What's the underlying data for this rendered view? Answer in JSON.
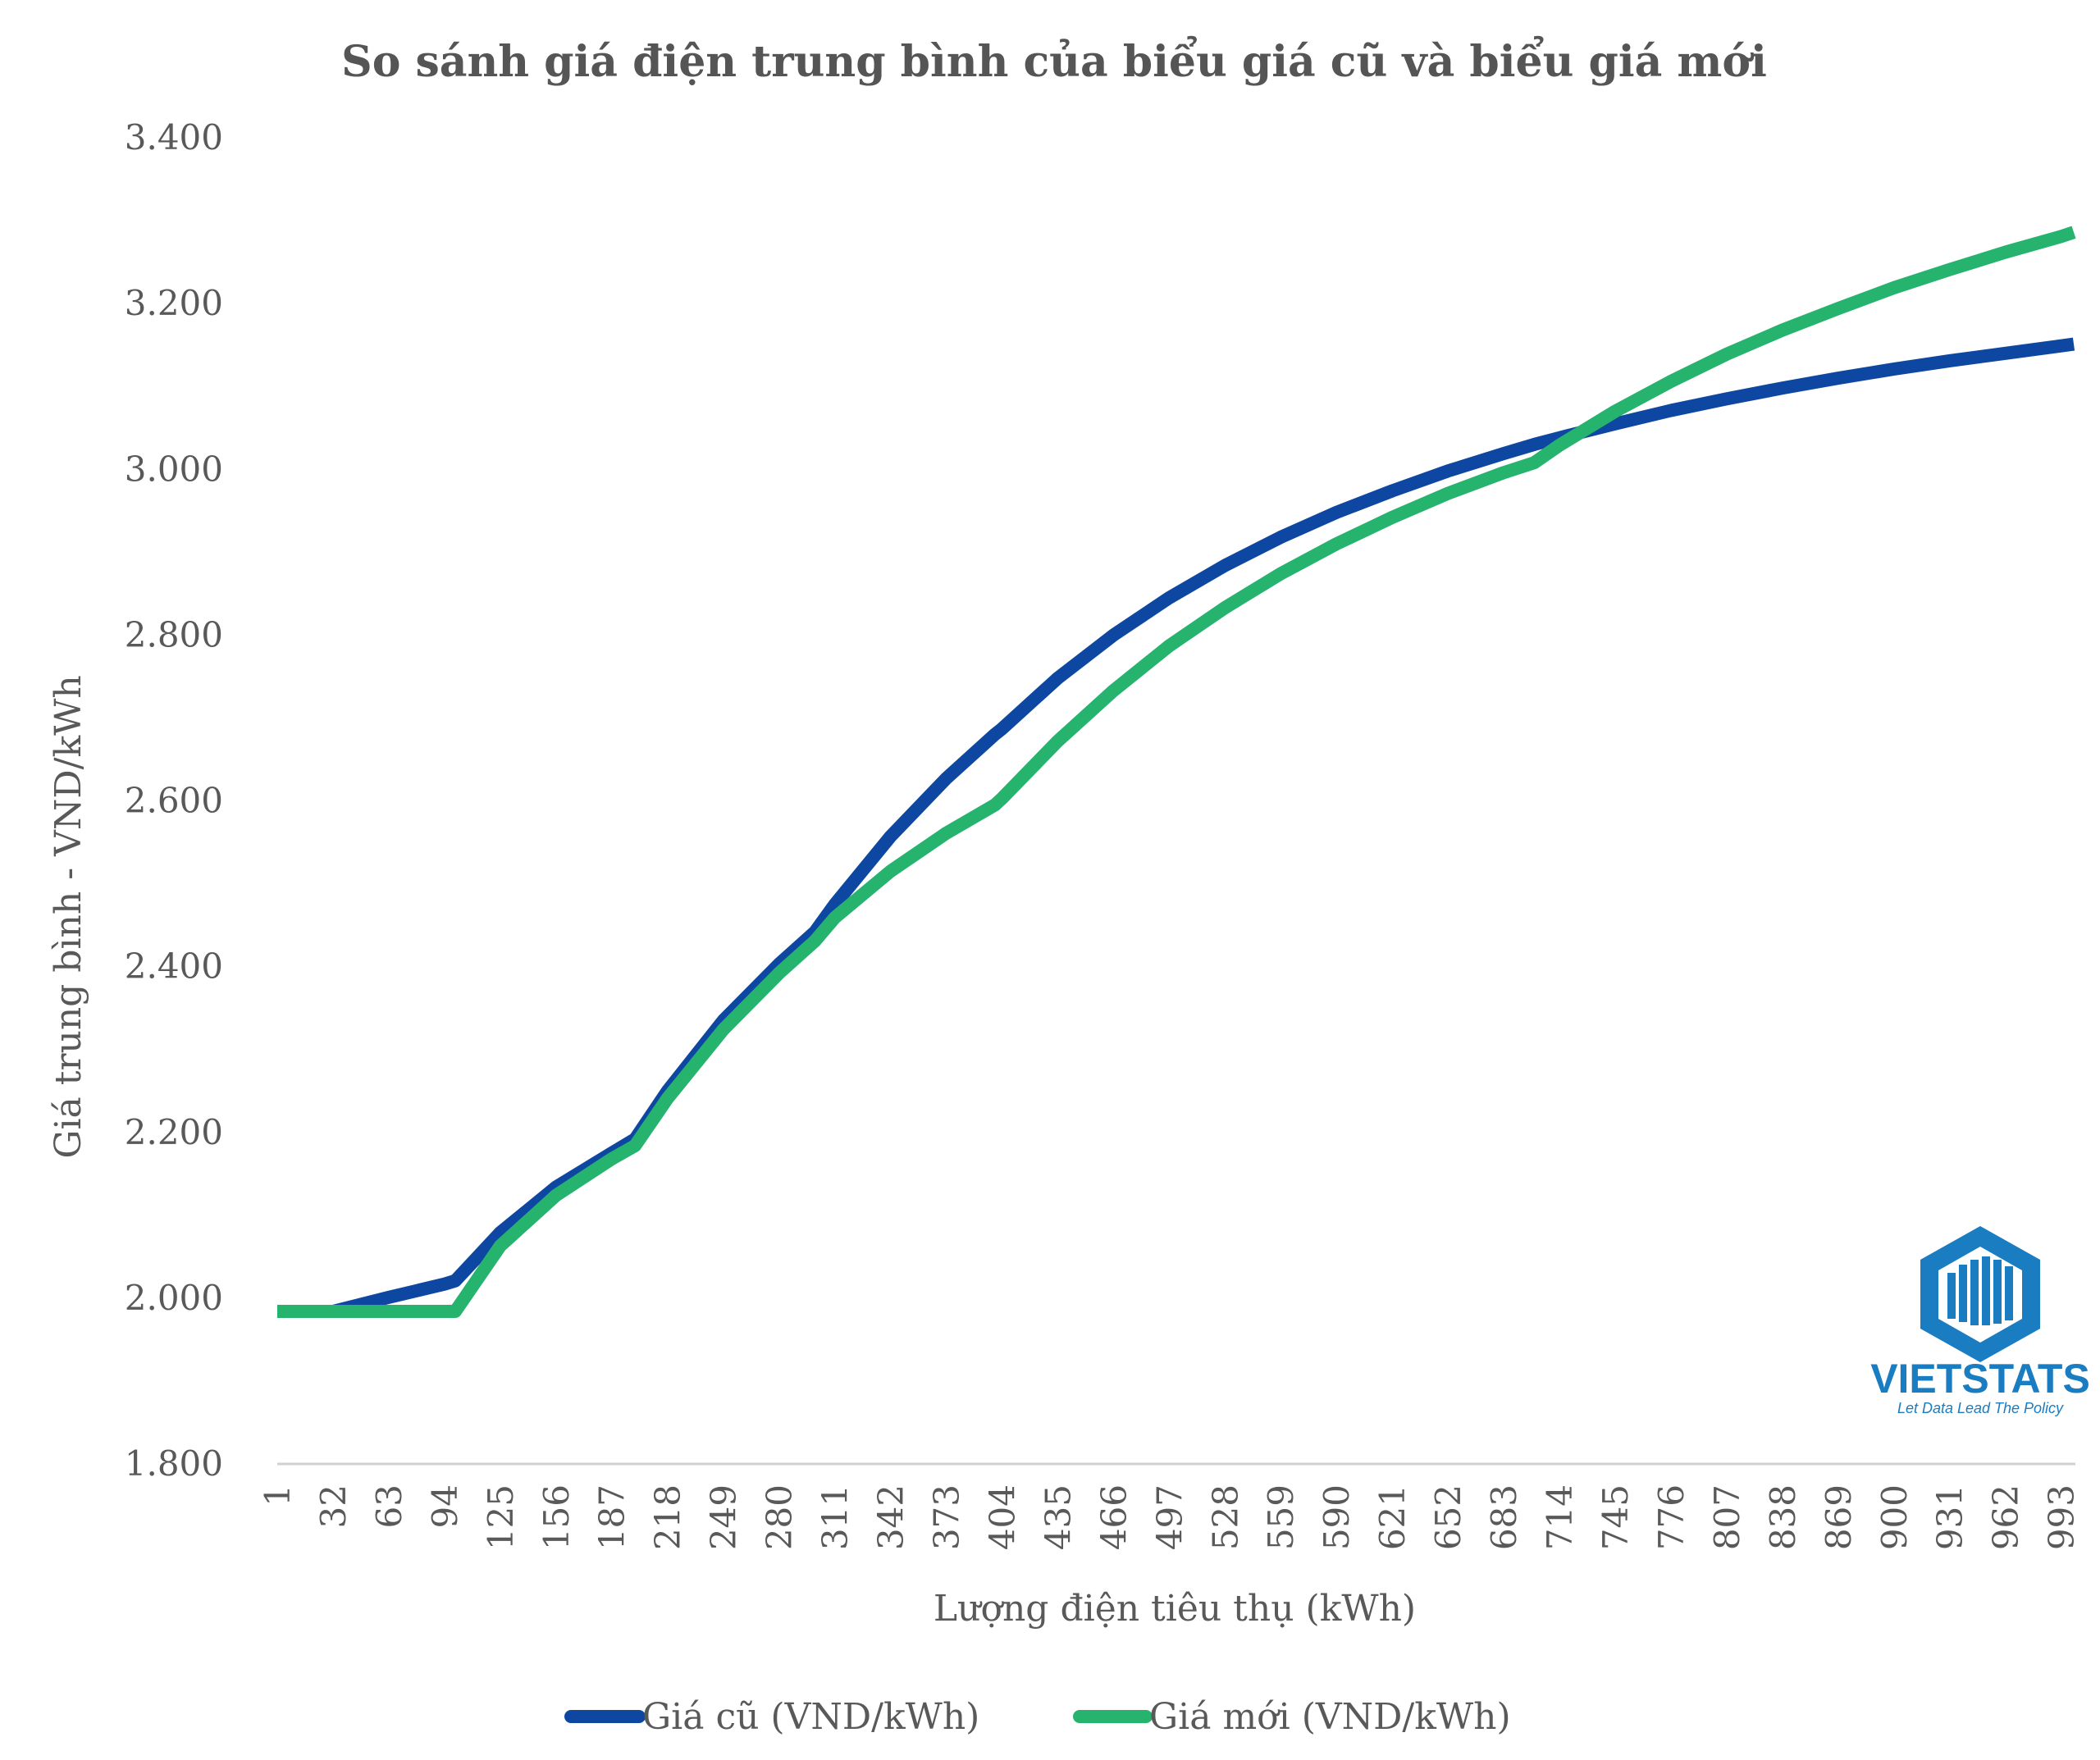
{
  "chart_data": {
    "type": "line",
    "title": "So sánh giá điện trung bình của biểu giá cũ và biểu giá mới",
    "xlabel": "Lượng điện tiêu thụ (kWh)",
    "ylabel": "Giá trung bình - VND/kWh",
    "ylim": [
      1800,
      3400
    ],
    "y_ticks": [
      "1.800",
      "2.000",
      "2.200",
      "2.400",
      "2.600",
      "2.800",
      "3.000",
      "3.200",
      "3.400"
    ],
    "x_ticks": [
      "1",
      "32",
      "63",
      "94",
      "125",
      "156",
      "187",
      "218",
      "249",
      "280",
      "311",
      "342",
      "373",
      "404",
      "435",
      "466",
      "497",
      "528",
      "559",
      "590",
      "621",
      "652",
      "683",
      "714",
      "745",
      "776",
      "807",
      "838",
      "869",
      "900",
      "931",
      "962",
      "993"
    ],
    "grid": false,
    "legend_position": "bottom",
    "x": [
      1,
      32,
      63,
      94,
      100,
      125,
      156,
      187,
      200,
      218,
      249,
      280,
      300,
      311,
      342,
      373,
      400,
      404,
      435,
      466,
      497,
      528,
      559,
      590,
      621,
      652,
      683,
      700,
      714,
      745,
      776,
      807,
      838,
      869,
      900,
      931,
      962,
      993,
      1000
    ],
    "series": [
      {
        "name": "Giá cũ (VND/kWh)",
        "color": "#0d47a1",
        "values": [
          1984,
          1984,
          2001,
          2017,
          2021,
          2079,
          2134,
          2175,
          2192,
          2250,
          2335,
          2403,
          2442,
          2475,
          2557,
          2627,
          2680,
          2687,
          2748,
          2800,
          2845,
          2884,
          2918,
          2948,
          2974,
          2998,
          3019,
          3030,
          3038,
          3055,
          3071,
          3085,
          3098,
          3110,
          3121,
          3131,
          3140,
          3149,
          3151
        ]
      },
      {
        "name": "Giá mới (VND/kWh)",
        "color": "#26b36e",
        "values": [
          1984,
          1984,
          1984,
          1984,
          1984,
          2063,
          2124,
          2168,
          2184,
          2241,
          2324,
          2392,
          2431,
          2459,
          2515,
          2561,
          2595,
          2603,
          2672,
          2733,
          2787,
          2833,
          2874,
          2910,
          2942,
          2971,
          2996,
          3008,
          3029,
          3070,
          3106,
          3139,
          3168,
          3194,
          3219,
          3241,
          3262,
          3281,
          3286
        ]
      }
    ]
  },
  "logo": {
    "name": "VIETSTATS",
    "tagline": "Let Data Lead The Policy",
    "color": "#1a7cc1"
  }
}
